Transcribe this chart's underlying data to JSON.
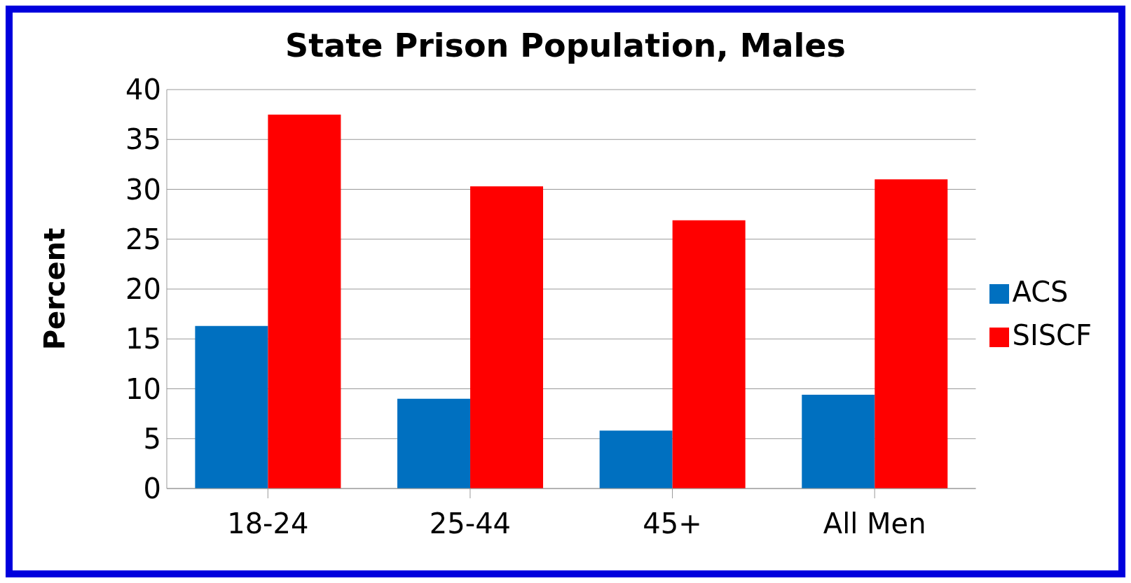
{
  "chart_data": {
    "type": "bar",
    "title": "State Prison Population, Males",
    "ylabel": "Percent",
    "categories": [
      "18-24",
      "25-44",
      "45+",
      "All Men"
    ],
    "series": [
      {
        "name": "ACS",
        "color": "#0070c0",
        "values": [
          16.3,
          9.0,
          5.8,
          9.4
        ]
      },
      {
        "name": "SISCF",
        "color": "#ff0000",
        "values": [
          37.5,
          30.3,
          26.9,
          31.0
        ]
      }
    ],
    "ylim": [
      0,
      40
    ],
    "yticks": [
      0,
      5,
      10,
      15,
      20,
      25,
      30,
      35,
      40
    ],
    "grid": "y",
    "legend": "right"
  }
}
